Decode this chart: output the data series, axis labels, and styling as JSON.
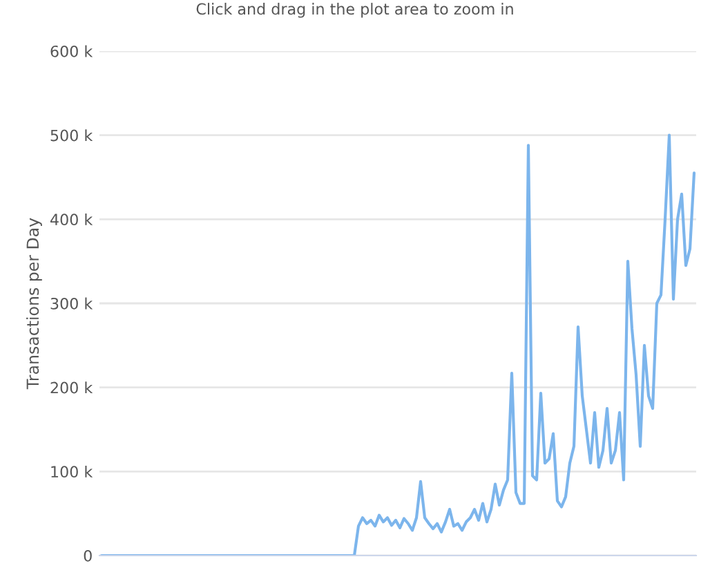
{
  "chart_data": {
    "type": "line",
    "subtitle": "Click and drag in the plot area to zoom in",
    "ylabel": "Transactions per Day",
    "categories": [
      null,
      null,
      null,
      null,
      null,
      null,
      null,
      null,
      null,
      null,
      null,
      null,
      null,
      null,
      null,
      null,
      null,
      null,
      null,
      null,
      null,
      null,
      null,
      null,
      null,
      null,
      null,
      null,
      null,
      null,
      null,
      null,
      null,
      null,
      null,
      null,
      null,
      null,
      null,
      null,
      null,
      null,
      null,
      null,
      null,
      null,
      null,
      null,
      null,
      null,
      null,
      null,
      null,
      null,
      null,
      null,
      null,
      null,
      null,
      null,
      null,
      null,
      null,
      null,
      null,
      null,
      null,
      null,
      null,
      null,
      null,
      null,
      null,
      null,
      null,
      null,
      null,
      null,
      null,
      null,
      null,
      null,
      null,
      null,
      null,
      null,
      null,
      null,
      null,
      null,
      null,
      null,
      null,
      null,
      null,
      null,
      null,
      null,
      null,
      null,
      null,
      null,
      null,
      null,
      null,
      null,
      null,
      null,
      null,
      null,
      null,
      null,
      null,
      null,
      null,
      null,
      null,
      null,
      null,
      null,
      null,
      null,
      null,
      null,
      null,
      null,
      null,
      null,
      null,
      null,
      null,
      null,
      null,
      null,
      null,
      null,
      null,
      null,
      null,
      null,
      null,
      null,
      null,
      null
    ],
    "series": [
      {
        "color": "#7cb5ec",
        "values": [
          0,
          0,
          0,
          0,
          0,
          0,
          0,
          0,
          0,
          0,
          0,
          0,
          0,
          0,
          0,
          0,
          0,
          0,
          0,
          0,
          0,
          0,
          0,
          0,
          0,
          0,
          0,
          0,
          0,
          0,
          0,
          0,
          0,
          0,
          0,
          0,
          0,
          0,
          0,
          0,
          0,
          0,
          0,
          0,
          0,
          0,
          0,
          0,
          0,
          0,
          0,
          0,
          0,
          0,
          0,
          0,
          0,
          0,
          0,
          0,
          0,
          0,
          35000,
          45000,
          38000,
          42000,
          35000,
          48000,
          40000,
          45000,
          36000,
          42000,
          33000,
          44000,
          38000,
          30000,
          45000,
          88000,
          45000,
          38000,
          32000,
          38000,
          28000,
          40000,
          55000,
          35000,
          38000,
          30000,
          40000,
          45000,
          55000,
          42000,
          62000,
          40000,
          55000,
          85000,
          60000,
          78000,
          90000,
          217000,
          75000,
          62000,
          62000,
          488000,
          95000,
          90000,
          193000,
          110000,
          115000,
          145000,
          65000,
          58000,
          70000,
          110000,
          130000,
          272000,
          190000,
          150000,
          110000,
          170000,
          105000,
          125000,
          175000,
          110000,
          125000,
          170000,
          90000,
          350000,
          270000,
          215000,
          130000,
          250000,
          190000,
          175000,
          300000,
          310000,
          400000,
          500000,
          305000,
          400000,
          430000,
          345000,
          365000,
          455000
        ]
      }
    ],
    "ylim": [
      0,
      600000
    ],
    "yticks": [
      0,
      {
        "value": 100000,
        "label": "100 k"
      },
      {
        "value": 200000,
        "label": "200 k"
      },
      {
        "value": 300000,
        "label": "300 k"
      },
      {
        "value": 400000,
        "label": "400 k"
      },
      {
        "value": 500000,
        "label": "500 k"
      },
      {
        "value": 600000,
        "label": "600 k"
      }
    ],
    "grid": "y",
    "tick_labels": "y",
    "marker": "none",
    "line_style": "solid"
  }
}
